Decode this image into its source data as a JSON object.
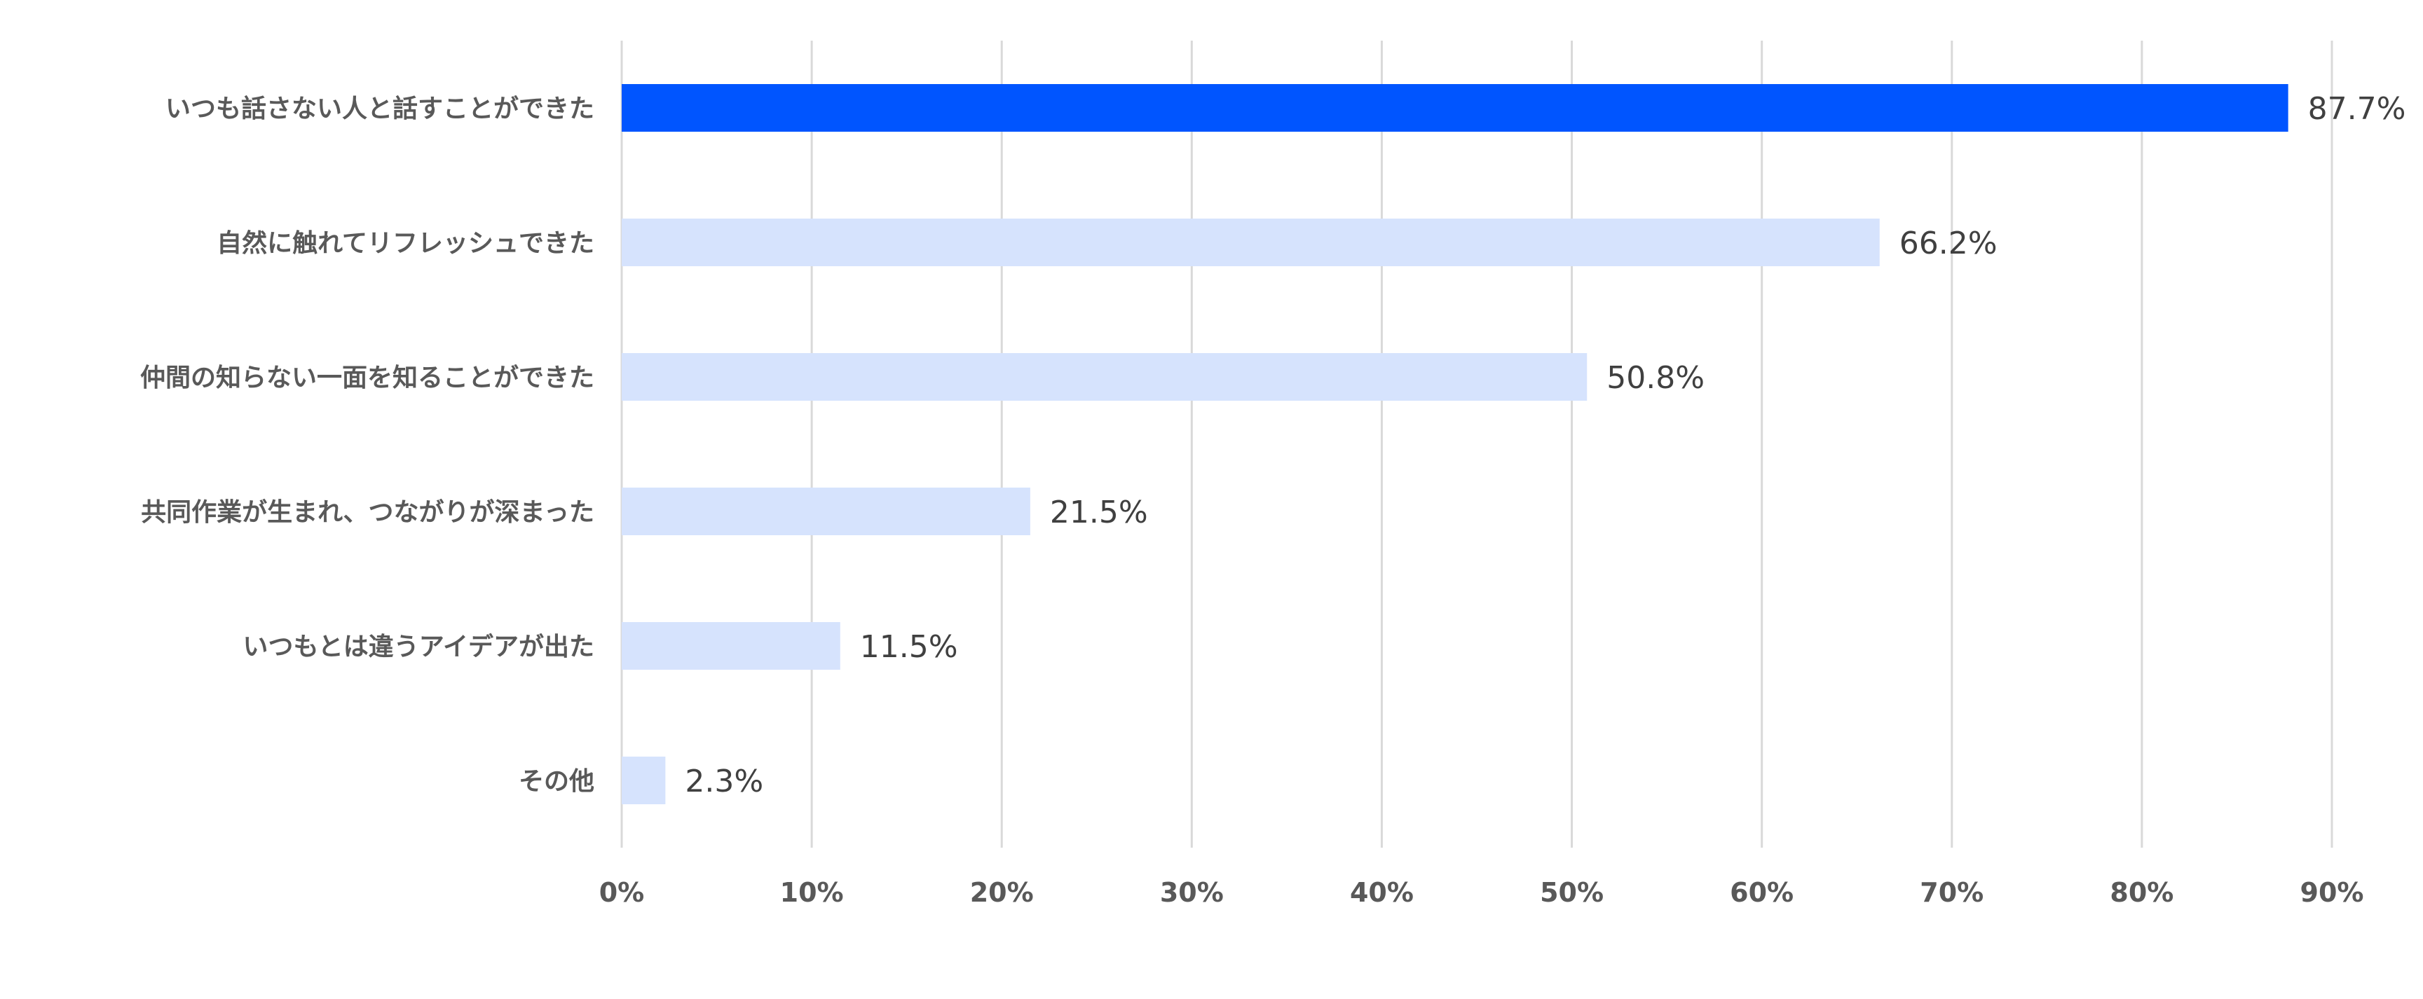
{
  "chart_data": {
    "type": "bar",
    "orientation": "horizontal",
    "categories": [
      "いつも話さない人と話すことができた",
      "自然に触れてリフレッシュできた",
      "仲間の知らない一面を知ることができた",
      "共同作業が生まれ、つながりが深まった",
      "いつもとは違うアイデアが出た",
      "その他"
    ],
    "values": [
      87.7,
      66.2,
      50.8,
      21.5,
      11.5,
      2.3
    ],
    "value_labels": [
      "87.7%",
      "66.2%",
      "50.8%",
      "21.5%",
      "11.5%",
      "2.3%"
    ],
    "xlim": [
      0,
      90
    ],
    "x_ticks": [
      0,
      10,
      20,
      30,
      40,
      50,
      60,
      70,
      80,
      90
    ],
    "x_tick_labels": [
      "0%",
      "10%",
      "20%",
      "30%",
      "40%",
      "50%",
      "60%",
      "70%",
      "80%",
      "90%"
    ],
    "grid": true,
    "legend": "none",
    "colors": {
      "highlight": "#0055ff",
      "default": "#d6e3fd",
      "grid": "#d9d9d9"
    },
    "highlight_index": 0
  }
}
